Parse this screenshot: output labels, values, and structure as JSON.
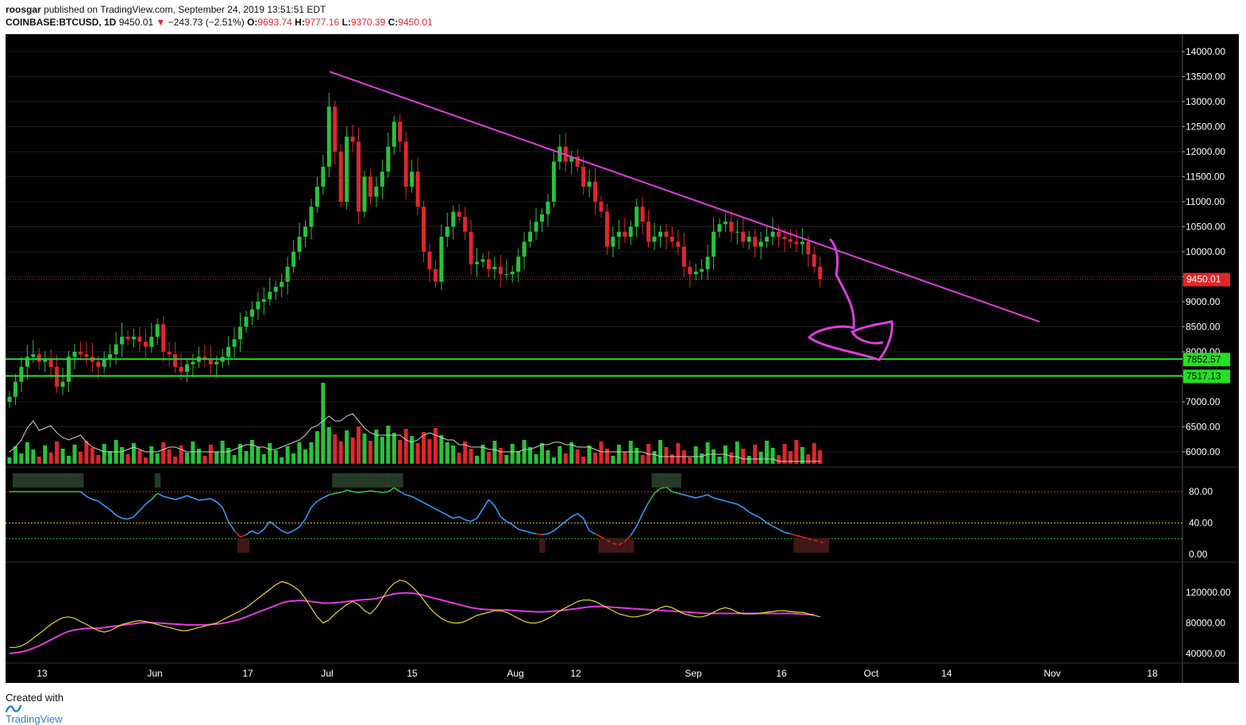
{
  "header": {
    "publisher": "roosgar",
    "published_text": "published on TradingView.com, September 24, 2019 13:51:51 EDT",
    "symbol": "COINBASE:BTCUSD, 1D",
    "price": "9450.01",
    "change_arrow": "▼",
    "change": "−243.73 (−2.51%)",
    "o_label": "O:",
    "o_value": "9693.74",
    "h_label": "H:",
    "h_value": "9777.16",
    "l_label": "L:",
    "l_value": "9370.39",
    "c_label": "C:",
    "c_value": "9450.01"
  },
  "footer": {
    "created_with": "Created with",
    "brand": "TradingView"
  },
  "price_badges": {
    "last": "9450.01",
    "support_upper": "7852.57",
    "support_lower": "7517.13"
  },
  "colors": {
    "up": "#26c43a",
    "down": "#e0262a",
    "trendline": "#e03ce0",
    "support": "#22e022",
    "background": "#000000"
  },
  "chart_data": {
    "type": "candlestick",
    "symbol": "COINBASE:BTCUSD",
    "interval": "1D",
    "price_axis": {
      "ticks": [
        14000,
        13500,
        13000,
        12500,
        12000,
        11500,
        11000,
        10500,
        10000,
        9500,
        9000,
        8500,
        8000,
        7500,
        7000,
        6500,
        6000
      ]
    },
    "time_axis": {
      "labels": [
        "13",
        "Jun",
        "17",
        "Jul",
        "15",
        "Aug",
        "12",
        "Sep",
        "16",
        "Oct",
        "14",
        "Nov",
        "18"
      ]
    },
    "close_series": [
      7100,
      7400,
      7700,
      7900,
      7950,
      7800,
      7850,
      7700,
      7300,
      7400,
      7900,
      8000,
      7950,
      7900,
      7800,
      7700,
      7850,
      7950,
      8150,
      8300,
      8250,
      8300,
      8200,
      8100,
      8300,
      8550,
      8000,
      7950,
      7700,
      7600,
      7750,
      7800,
      7900,
      7850,
      7750,
      7800,
      7900,
      8100,
      8250,
      8500,
      8700,
      8850,
      9000,
      9050,
      9200,
      9300,
      9400,
      9700,
      10000,
      10300,
      10500,
      10900,
      11300,
      11700,
      12900,
      12000,
      11000,
      12300,
      12200,
      10800,
      11500,
      11100,
      11300,
      11600,
      12100,
      12600,
      12200,
      11300,
      11600,
      10900,
      10000,
      9650,
      9400,
      10300,
      10500,
      10800,
      10700,
      10400,
      9750,
      9800,
      9850,
      9650,
      9700,
      9550,
      9550,
      9600,
      9900,
      10200,
      10400,
      10600,
      10750,
      11000,
      11800,
      12100,
      11800,
      11900,
      11700,
      11300,
      11400,
      11000,
      10800,
      10100,
      10300,
      10400,
      10300,
      10500,
      10900,
      10600,
      10200,
      10300,
      10400,
      10300,
      10200,
      10100,
      9700,
      9550,
      9600,
      9650,
      9900,
      10400,
      10550,
      10600,
      10400,
      10400,
      10200,
      10300,
      10100,
      10200,
      10300,
      10400,
      10300,
      10250,
      10200,
      10150,
      10200,
      9950,
      9700,
      9450
    ],
    "volume_ma_series": [
      6150,
      6250,
      6400,
      6650,
      6800,
      6600,
      6650,
      6700,
      6550,
      6450,
      6400,
      6450,
      6500,
      6350,
      6250,
      6200,
      6150,
      6150,
      6150,
      6150,
      6200,
      6250,
      6200,
      6150,
      6150,
      6150,
      6200,
      6250,
      6250,
      6200,
      6150,
      6150,
      6150,
      6150,
      6150,
      6150,
      6150,
      6150,
      6200,
      6250,
      6300,
      6300,
      6250,
      6250,
      6200,
      6200,
      6250,
      6300,
      6350,
      6400,
      6500,
      6650,
      6700,
      6800,
      6900,
      6800,
      6800,
      6900,
      6950,
      6800,
      6650,
      6550,
      6500,
      6500,
      6500,
      6500,
      6500,
      6400,
      6350,
      6400,
      6500,
      6550,
      6500,
      6450,
      6400,
      6400,
      6300,
      6300,
      6250,
      6250,
      6250,
      6200,
      6200,
      6150,
      6150,
      6150,
      6150,
      6200,
      6200,
      6250,
      6300,
      6300,
      6350,
      6350,
      6300,
      6300,
      6250,
      6250,
      6250,
      6200,
      6150,
      6150,
      6150,
      6150,
      6150,
      6150,
      6150,
      6150,
      6100,
      6100,
      6050,
      6050,
      6050,
      6050,
      6050,
      6050,
      6050,
      6050,
      6100,
      6100,
      6100,
      6100,
      6050,
      6050,
      6000,
      6000,
      6000,
      6000,
      6000,
      6000,
      5950,
      5950,
      5950,
      5950,
      5950,
      5950,
      5950,
      5950
    ],
    "support_levels": [
      7852.57,
      7517.13
    ],
    "last_price": 9450.01,
    "oscillator_1": {
      "axis_ticks": [
        80,
        40,
        0
      ],
      "levels": [
        80,
        40,
        20
      ],
      "values": [
        80,
        80,
        80,
        80,
        80,
        80,
        80,
        80,
        80,
        80,
        80,
        80,
        80,
        74,
        70,
        68,
        62,
        57,
        50,
        46,
        45,
        48,
        56,
        64,
        70,
        78,
        74,
        72,
        70,
        72,
        75,
        72,
        69,
        70,
        71,
        67,
        60,
        42,
        30,
        22,
        25,
        30,
        26,
        32,
        42,
        36,
        30,
        27,
        30,
        35,
        45,
        60,
        68,
        72,
        76,
        78,
        79,
        82,
        80,
        79,
        80,
        81,
        80,
        79,
        80,
        85,
        80,
        76,
        74,
        70,
        66,
        62,
        58,
        54,
        50,
        46,
        48,
        44,
        42,
        46,
        58,
        70,
        62,
        48,
        42,
        38,
        32,
        30,
        28,
        26,
        25,
        26,
        30,
        36,
        42,
        48,
        52,
        46,
        30,
        26,
        22,
        18,
        14,
        12,
        16,
        24,
        36,
        52,
        66,
        78,
        84,
        86,
        80,
        78,
        76,
        74,
        72,
        74,
        76,
        72,
        70,
        68,
        66,
        64,
        60,
        54,
        50,
        46,
        40,
        36,
        32,
        28,
        26,
        24,
        22,
        20,
        18,
        16,
        14
      ],
      "hist_values": [
        1,
        1,
        1,
        1,
        1,
        1,
        1,
        1,
        0,
        0,
        0,
        0,
        0,
        0,
        0,
        0,
        0,
        0,
        0,
        0,
        1,
        1,
        1,
        1,
        1,
        0,
        0,
        0,
        0,
        0,
        0,
        0,
        0,
        0,
        0,
        0,
        0,
        -1,
        -1,
        -1,
        -1,
        -1,
        -1,
        -1,
        0,
        0,
        0,
        0,
        0,
        0,
        0,
        1,
        1,
        1,
        1,
        1,
        1,
        1,
        1,
        1,
        1,
        1,
        1,
        1,
        1,
        1,
        1,
        1,
        1,
        1,
        1,
        1,
        1,
        1,
        1,
        1,
        1,
        1,
        1,
        1,
        1,
        1,
        1,
        1,
        1,
        1,
        1,
        1,
        1,
        1,
        1,
        1,
        1,
        1,
        1,
        1,
        1,
        1,
        1,
        1,
        1,
        1,
        1,
        1,
        1,
        1,
        1,
        1,
        1,
        1,
        1,
        1,
        1,
        1,
        1,
        1,
        1,
        1,
        1,
        1,
        1,
        1,
        1,
        1,
        1,
        1,
        1,
        1,
        1,
        1,
        1,
        1,
        1,
        1,
        1,
        1,
        1,
        1,
        1
      ]
    },
    "oscillator_2": {
      "axis_ticks": [
        120000,
        80000,
        40000
      ],
      "fast": [
        48000,
        48000,
        50000,
        54000,
        60000,
        66000,
        72000,
        78000,
        83000,
        87000,
        88000,
        86000,
        82000,
        78000,
        74000,
        70000,
        68000,
        70000,
        74000,
        78000,
        80000,
        82000,
        83000,
        82000,
        80000,
        78000,
        76000,
        74000,
        72000,
        70000,
        70000,
        72000,
        74000,
        76000,
        78000,
        80000,
        84000,
        88000,
        92000,
        96000,
        100000,
        106000,
        112000,
        118000,
        124000,
        130000,
        134000,
        132000,
        128000,
        122000,
        112000,
        100000,
        88000,
        80000,
        84000,
        92000,
        98000,
        104000,
        108000,
        104000,
        96000,
        92000,
        100000,
        112000,
        124000,
        132000,
        136000,
        134000,
        128000,
        120000,
        110000,
        100000,
        92000,
        86000,
        82000,
        80000,
        80000,
        82000,
        86000,
        90000,
        92000,
        94000,
        96000,
        96000,
        94000,
        90000,
        86000,
        82000,
        80000,
        80000,
        82000,
        86000,
        90000,
        96000,
        100000,
        104000,
        108000,
        110000,
        110000,
        108000,
        104000,
        100000,
        96000,
        92000,
        90000,
        88000,
        88000,
        90000,
        92000,
        96000,
        100000,
        102000,
        100000,
        96000,
        92000,
        90000,
        88000,
        88000,
        90000,
        94000,
        98000,
        100000,
        98000,
        94000,
        92000,
        92000,
        92000,
        93000,
        94000,
        95000,
        96000,
        96000,
        95000,
        94000,
        94000,
        92000,
        90000,
        88000
      ],
      "slow": [
        40000,
        41000,
        42000,
        44000,
        47000,
        50000,
        54000,
        58000,
        62000,
        66000,
        69000,
        71000,
        72000,
        73000,
        73000,
        73000,
        74000,
        75000,
        76000,
        77000,
        78000,
        79000,
        80000,
        80500,
        80500,
        80000,
        79500,
        79000,
        78500,
        78000,
        77500,
        77500,
        77500,
        77500,
        78000,
        78500,
        79500,
        81000,
        83000,
        85000,
        88000,
        91000,
        94000,
        97000,
        100000,
        103000,
        106000,
        108000,
        109000,
        109500,
        109000,
        108000,
        107000,
        106000,
        106000,
        106500,
        107000,
        108000,
        109000,
        110000,
        110500,
        111000,
        112000,
        114000,
        116000,
        118000,
        119000,
        119500,
        119000,
        118000,
        116000,
        114000,
        112000,
        110000,
        108000,
        106000,
        104000,
        102000,
        100000,
        99000,
        98000,
        97500,
        97000,
        97000,
        97000,
        96500,
        96000,
        95500,
        95000,
        94500,
        94500,
        95000,
        95500,
        96000,
        97000,
        98000,
        99000,
        100000,
        101000,
        101500,
        101500,
        101000,
        100500,
        100000,
        99500,
        99000,
        98500,
        98000,
        97500,
        97000,
        96500,
        96000,
        95500,
        95000,
        94500,
        94000,
        93500,
        93000,
        92500,
        92500,
        92500,
        92500,
        92500,
        92500,
        92500,
        92500,
        92500,
        92500,
        92500,
        92500,
        92500,
        92500,
        92500,
        92000,
        91500,
        91000,
        90500
      ]
    }
  }
}
